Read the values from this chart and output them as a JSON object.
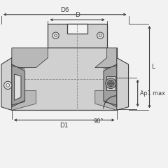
{
  "bg_color": "#f2f2f2",
  "line_color": "#404040",
  "dim_color": "#404040",
  "body_fill": "#d0d0d0",
  "body_edge": "#404040",
  "dark_fill": "#a0a0a0",
  "light_fill": "#e0e0e0",
  "fig_size": [
    2.4,
    2.4
  ],
  "dpi": 100,
  "labels": {
    "D6": "D6",
    "D": "D",
    "D1": "D1",
    "L": "L",
    "Ap1max": "Ap1 max",
    "angle": "90°"
  }
}
